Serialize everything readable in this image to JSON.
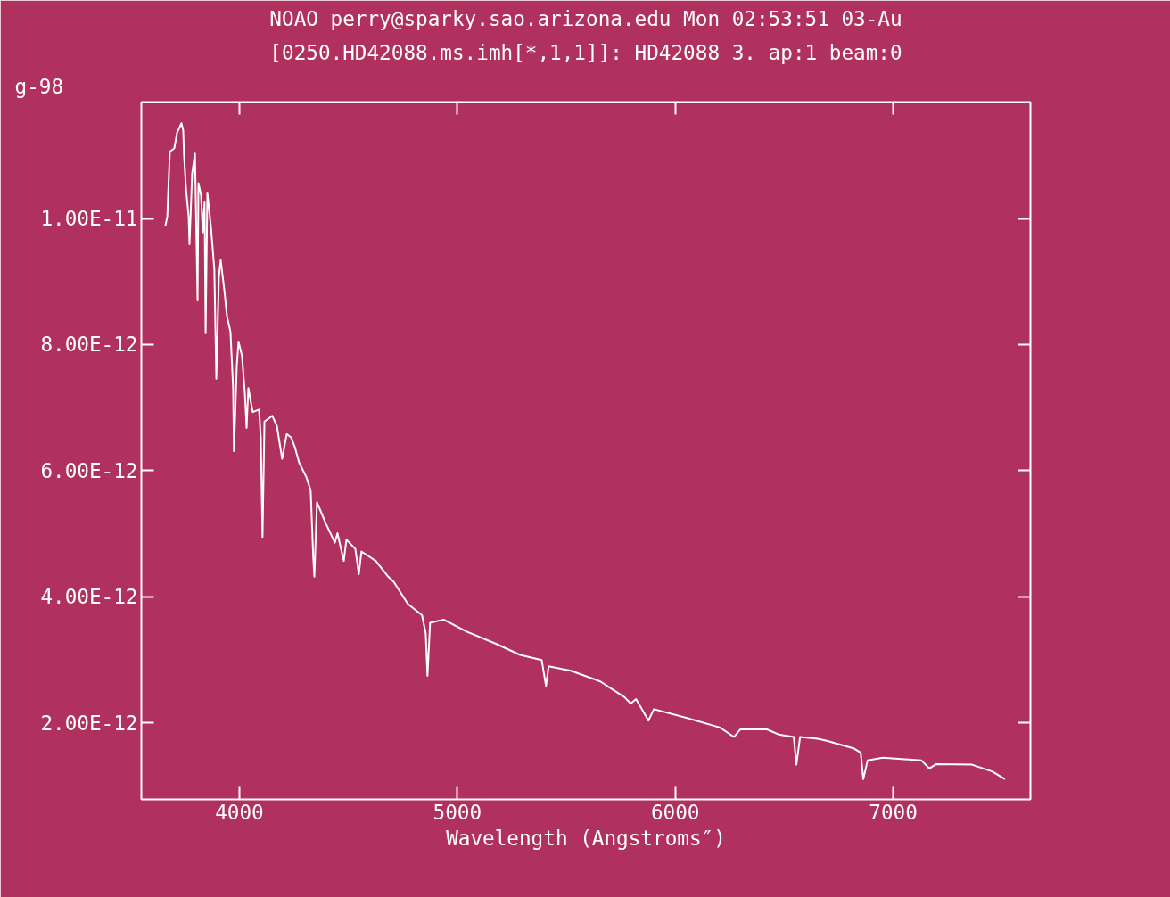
{
  "chart_data": {
    "type": "line",
    "title": "NOAO perry@sparky.sao.arizona.edu Mon 02:53:51 03-Au",
    "subtitle": "[0250.HD42088.ms.imh[*,1,1]]: HD42088 3. ap:1 beam:0",
    "xlabel": "Wavelength (Angstroms″)",
    "annotations": [
      "g-98"
    ],
    "x": [
      3660,
      3669,
      3677,
      3681,
      3701,
      3714,
      3734,
      3742,
      3746,
      3755,
      3767,
      3771,
      3783,
      3796,
      3808,
      3812,
      3824,
      3832,
      3840,
      3845,
      3853,
      3869,
      3885,
      3894,
      3906,
      3914,
      3930,
      3943,
      3959,
      3971,
      3975,
      3988,
      3996,
      4012,
      4025,
      4033,
      4041,
      4061,
      4090,
      4098,
      4106,
      4115,
      4151,
      4172,
      4196,
      4217,
      4237,
      4254,
      4274,
      4307,
      4327,
      4339,
      4344,
      4356,
      4397,
      4438,
      4450,
      4479,
      4491,
      4532,
      4548,
      4560,
      4626,
      4683,
      4708,
      4773,
      4838,
      4855,
      4863,
      4875,
      4937,
      5043,
      5182,
      5288,
      5387,
      5407,
      5419,
      5521,
      5656,
      5767,
      5796,
      5820,
      5877,
      5902,
      6065,
      6205,
      6270,
      6299,
      6421,
      6474,
      6544,
      6556,
      6573,
      6654,
      6695,
      6818,
      6851,
      6863,
      6883,
      6953,
      7129,
      7166,
      7198,
      7362,
      7456,
      7513
    ],
    "series": [
      {
        "color": "#ffffff",
        "values": [
          9.88e-12,
          1.003e-11,
          1.074e-11,
          1.106e-11,
          1.111e-11,
          1.136e-11,
          1.151e-11,
          1.14e-11,
          1.1e-11,
          1.047e-11,
          1.003e-11,
          9.59e-12,
          1.071e-11,
          1.103e-11,
          8.7e-12,
          1.056e-11,
          1.037e-11,
          9.78e-12,
          1.027e-11,
          8.18e-12,
          1.041e-11,
          9.88e-12,
          9.19e-12,
          7.46e-12,
          9.08e-12,
          9.34e-12,
          8.89e-12,
          8.45e-12,
          8.2e-12,
          7.31e-12,
          6.31e-12,
          7.67e-12,
          8.05e-12,
          7.82e-12,
          7.23e-12,
          6.68e-12,
          7.31e-12,
          6.93e-12,
          6.97e-12,
          6.53e-12,
          4.95e-12,
          6.78e-12,
          6.87e-12,
          6.71e-12,
          6.19e-12,
          6.58e-12,
          6.53e-12,
          6.38e-12,
          6.13e-12,
          5.9e-12,
          5.69e-12,
          4.61e-12,
          4.32e-12,
          5.5e-12,
          5.16e-12,
          4.86e-12,
          5.01e-12,
          4.57e-12,
          4.91e-12,
          4.76e-12,
          4.36e-12,
          4.72e-12,
          4.57e-12,
          4.32e-12,
          4.24e-12,
          3.89e-12,
          3.71e-12,
          3.42e-12,
          2.75e-12,
          3.59e-12,
          3.64e-12,
          3.45e-12,
          3.25e-12,
          3.08e-12,
          3e-12,
          2.59e-12,
          2.9e-12,
          2.83e-12,
          2.66e-12,
          2.41e-12,
          2.31e-12,
          2.38e-12,
          2.04e-12,
          2.22e-12,
          2.07e-12,
          1.93e-12,
          1.78e-12,
          1.9e-12,
          1.9e-12,
          1.82e-12,
          1.78e-12,
          1.34e-12,
          1.78e-12,
          1.75e-12,
          1.72e-12,
          1.6e-12,
          1.53e-12,
          1.11e-12,
          1.41e-12,
          1.45e-12,
          1.41e-12,
          1.28e-12,
          1.35e-12,
          1.34e-12,
          1.23e-12,
          1.11e-12
        ]
      }
    ],
    "xlim": [
      3550,
      7630
    ],
    "ylim": [
      7.9e-13,
      1.1845e-11
    ],
    "xticks": [
      4000,
      5000,
      6000,
      7000
    ],
    "yticks": [
      {
        "value": 2e-12,
        "label": "2.00E-12"
      },
      {
        "value": 4e-12,
        "label": "4.00E-12"
      },
      {
        "value": 6e-12,
        "label": "6.00E-12"
      },
      {
        "value": 8e-12,
        "label": "8.00E-12"
      },
      {
        "value": 1e-11,
        "label": "1.00E-11"
      }
    ],
    "grid": false,
    "marker": "none",
    "line_style": "solid"
  }
}
